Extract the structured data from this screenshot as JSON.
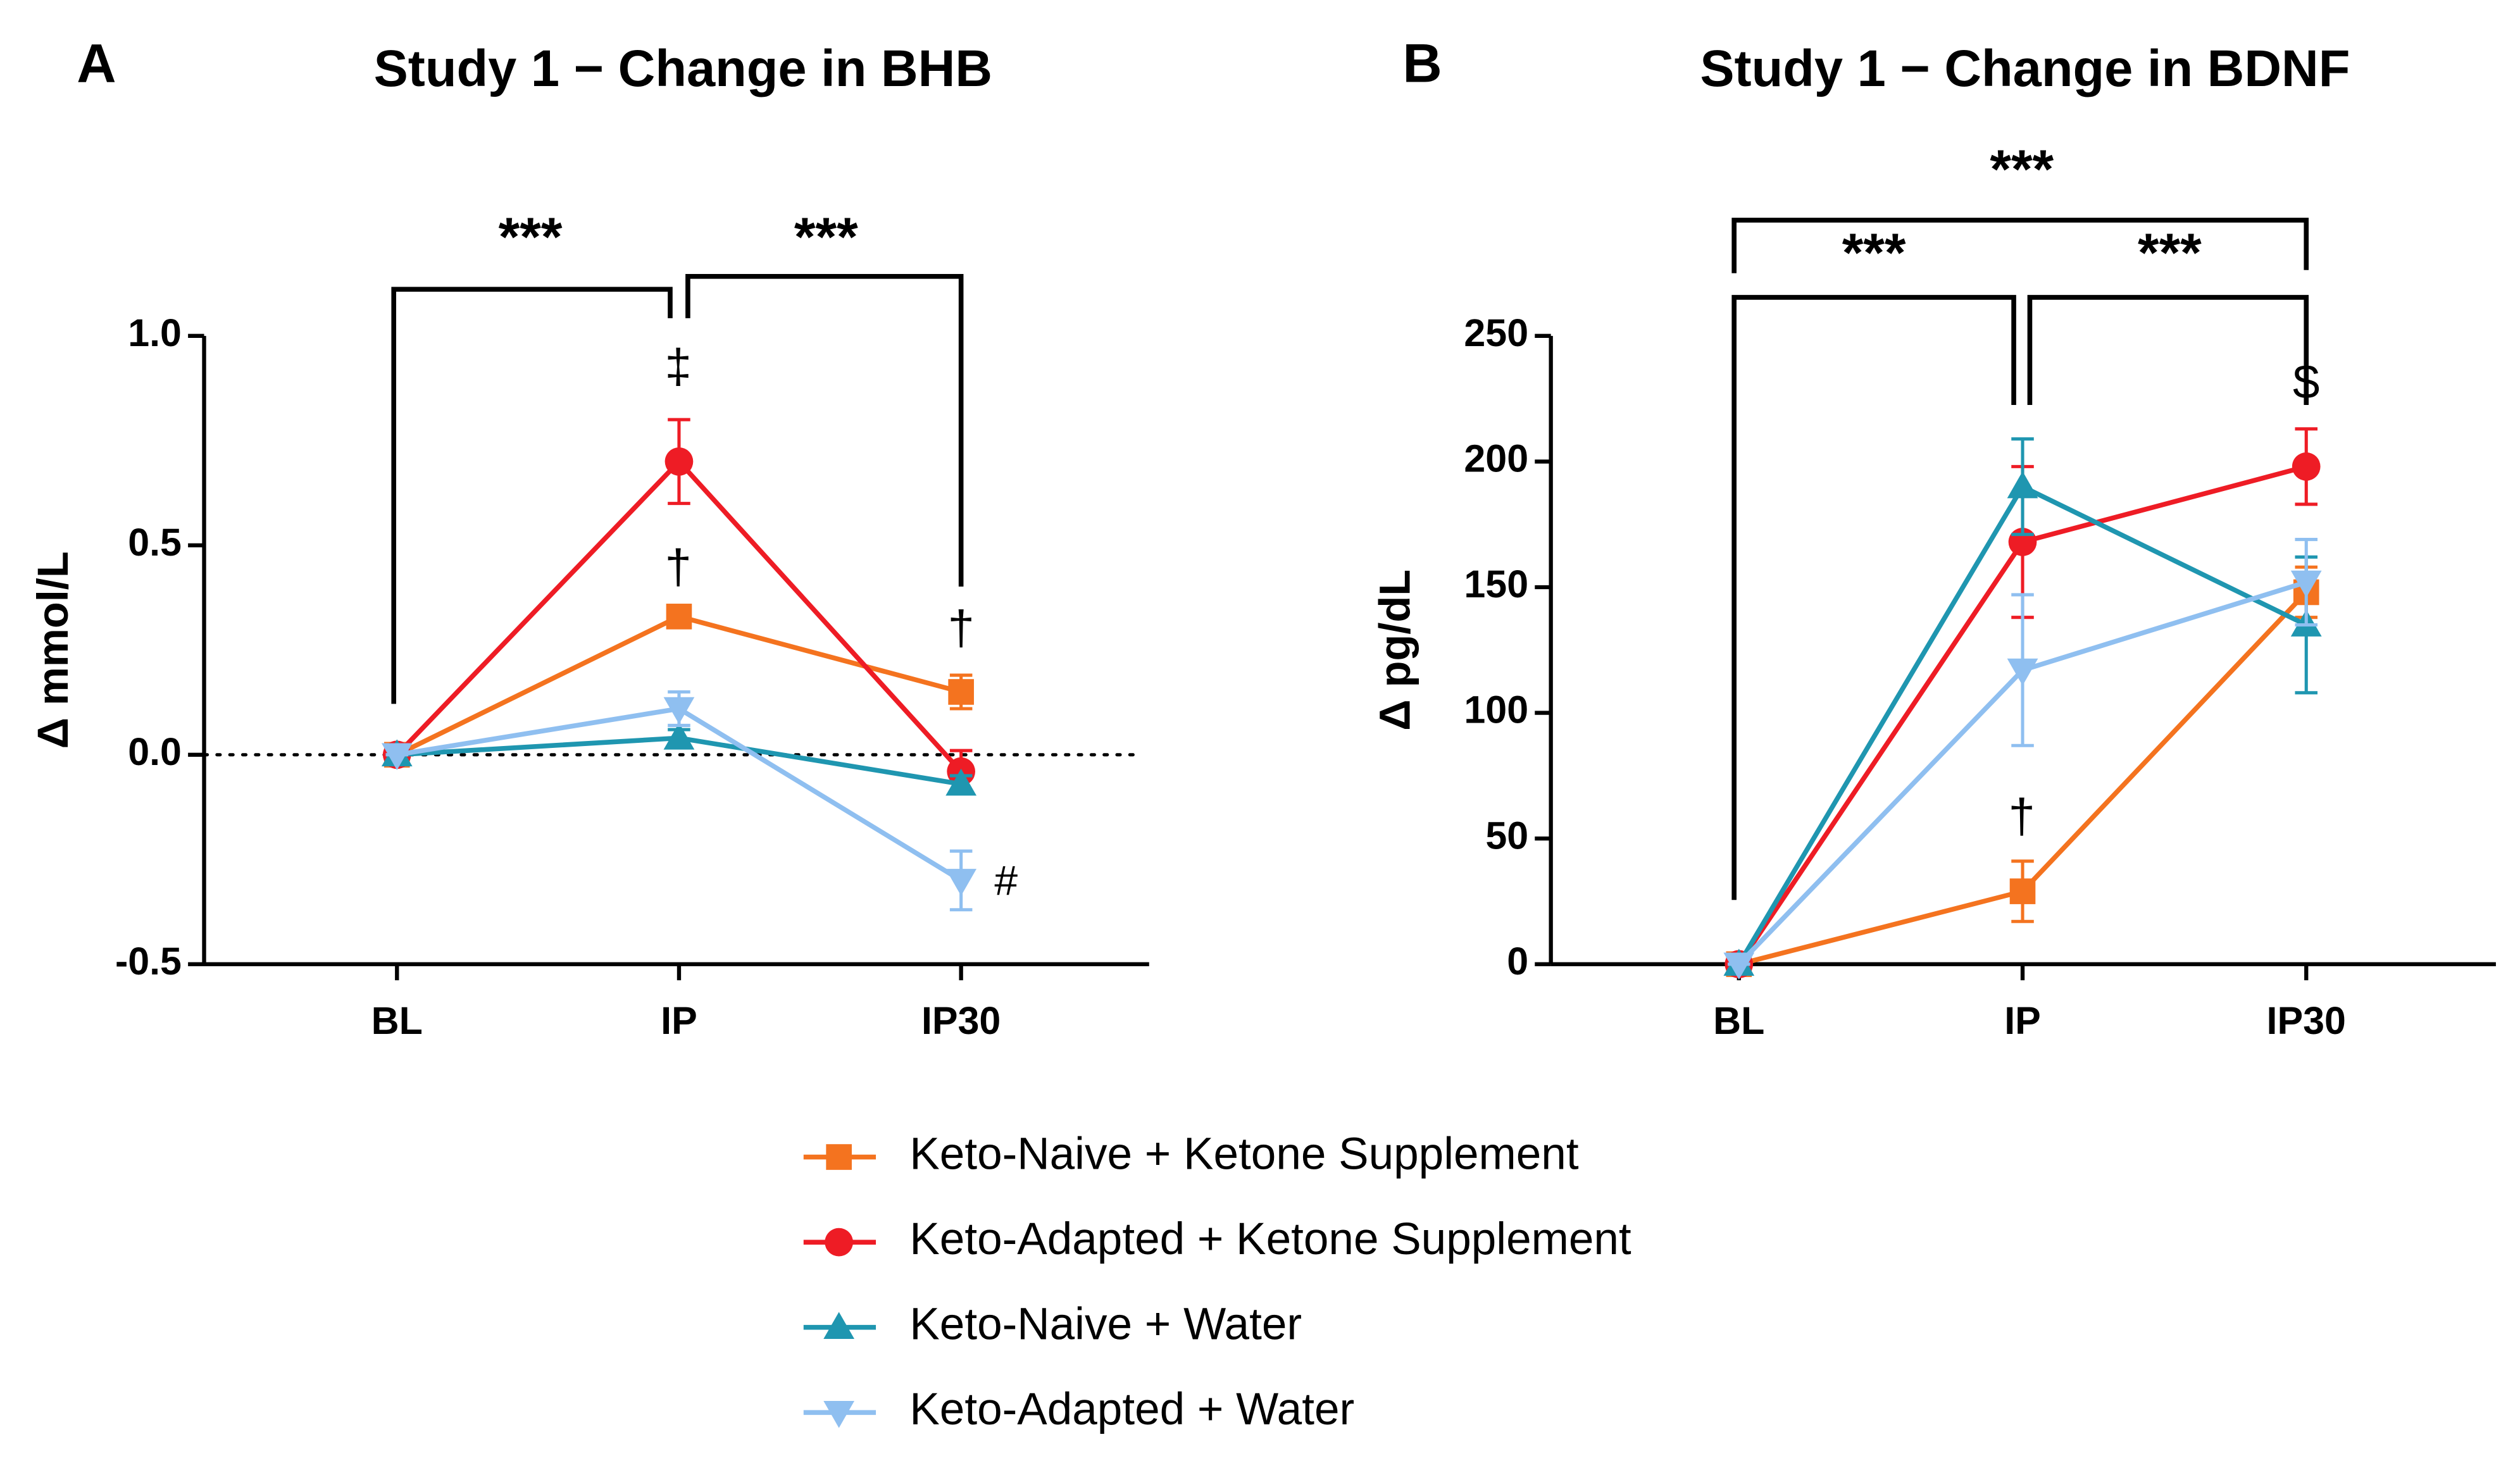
{
  "chart_data": [
    {
      "type": "line",
      "panel": "A",
      "title": "Study 1 − Change in BHB",
      "y_label": "Δ mmol/L",
      "categories": [
        "BL",
        "IP",
        "IP30"
      ],
      "ylim": [
        -0.5,
        1.0
      ],
      "yticks": [
        -0.5,
        {
          "value": 0,
          "label": "0.0"
        },
        0.5,
        {
          "value": 1,
          "label": "1.0"
        }
      ],
      "zero_line": true,
      "series": [
        {
          "name": "Keto-Naive + Ketone Supplement",
          "color": "#f4731f",
          "marker": "square",
          "values": [
            0,
            0.33,
            0.15
          ],
          "errors": [
            0,
            0.02,
            0.04
          ]
        },
        {
          "name": "Keto-Adapted + Ketone Supplement",
          "color": "#ee1c25",
          "marker": "circle",
          "values": [
            0,
            0.7,
            -0.04
          ],
          "errors": [
            0,
            0.1,
            0.05
          ]
        },
        {
          "name": "Keto-Naive + Water",
          "color": "#1f96b0",
          "marker": "triangle-up",
          "values": [
            0,
            0.04,
            -0.07
          ],
          "errors": [
            0,
            0.02,
            0.02
          ]
        },
        {
          "name": "Keto-Adapted + Water",
          "color": "#8fbff0",
          "marker": "triangle-down",
          "values": [
            0,
            0.11,
            -0.3
          ],
          "errors": [
            0,
            0.04,
            0.07
          ]
        }
      ],
      "annotations": [
        "***",
        "***",
        "‡",
        "†",
        "†",
        "#"
      ]
    },
    {
      "type": "line",
      "panel": "B",
      "title": "Study 1 − Change in BDNF",
      "y_label": "Δ pg/dL",
      "categories": [
        "BL",
        "IP",
        "IP30"
      ],
      "ylim": [
        0,
        250
      ],
      "yticks": [
        0,
        50,
        100,
        150,
        200,
        250
      ],
      "zero_line": false,
      "series": [
        {
          "name": "Keto-Naive + Ketone Supplement",
          "color": "#f4731f",
          "marker": "square",
          "values": [
            0,
            29,
            148
          ],
          "errors": [
            0,
            12,
            10
          ]
        },
        {
          "name": "Keto-Adapted + Ketone Supplement",
          "color": "#ee1c25",
          "marker": "circle",
          "values": [
            0,
            168,
            198
          ],
          "errors": [
            0,
            30,
            15
          ]
        },
        {
          "name": "Keto-Naive + Water",
          "color": "#1f96b0",
          "marker": "triangle-up",
          "values": [
            0,
            190,
            135
          ],
          "errors": [
            0,
            19,
            27
          ]
        },
        {
          "name": "Keto-Adapted + Water",
          "color": "#8fbff0",
          "marker": "triangle-down",
          "values": [
            0,
            117,
            152
          ],
          "errors": [
            0,
            30,
            17
          ]
        }
      ],
      "annotations": [
        "***",
        "***",
        "***",
        "†",
        "$"
      ]
    }
  ]
}
